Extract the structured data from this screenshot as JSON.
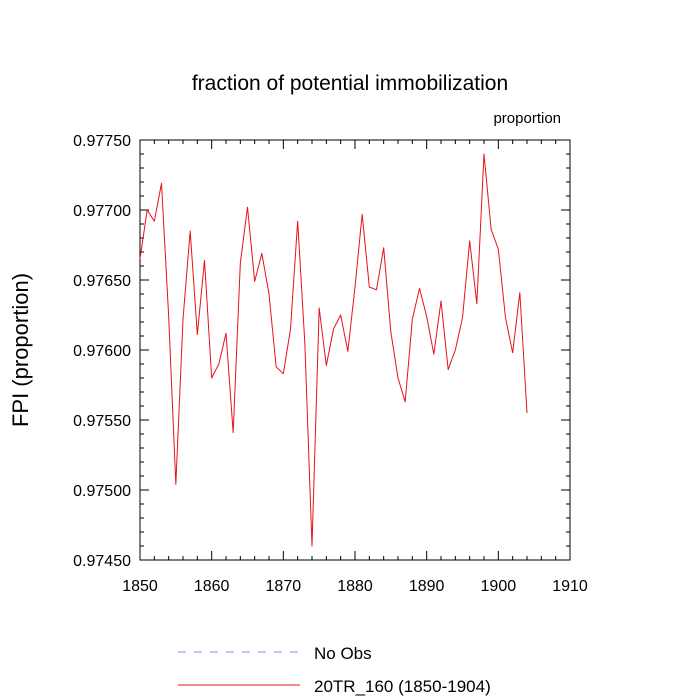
{
  "chart_data": {
    "type": "line",
    "title": "fraction of potential immobilization",
    "units_label": "proportion",
    "xlabel": "",
    "ylabel": "FPI  (proportion)",
    "xlim": [
      1850,
      1910
    ],
    "ylim": [
      0.9745,
      0.9775
    ],
    "x_ticks": [
      "1850",
      "1860",
      "1870",
      "1880",
      "1890",
      "1900",
      "1910"
    ],
    "y_ticks": [
      "0.97450",
      "0.97500",
      "0.97550",
      "0.97600",
      "0.97650",
      "0.97700",
      "0.97750"
    ],
    "grid": false,
    "legend_position": "bottom",
    "series": [
      {
        "name": "No Obs",
        "legend_label": "No Obs",
        "color": "#8080ff",
        "dash": "dashed",
        "x": [],
        "values": []
      },
      {
        "name": "20TR_160",
        "legend_label": "20TR_160 (1850-1904)",
        "color": "#e8101a",
        "dash": "solid",
        "x": [
          1850,
          1851,
          1852,
          1853,
          1854,
          1855,
          1856,
          1857,
          1858,
          1859,
          1860,
          1861,
          1862,
          1863,
          1864,
          1865,
          1866,
          1867,
          1868,
          1869,
          1870,
          1871,
          1872,
          1873,
          1874,
          1875,
          1876,
          1877,
          1878,
          1879,
          1880,
          1881,
          1882,
          1883,
          1884,
          1885,
          1886,
          1887,
          1888,
          1889,
          1890,
          1891,
          1892,
          1893,
          1894,
          1895,
          1896,
          1897,
          1898,
          1899,
          1900,
          1901,
          1902,
          1903,
          1904
        ],
        "values": [
          0.97665,
          0.977,
          0.97692,
          0.97719,
          0.97624,
          0.97504,
          0.97622,
          0.97685,
          0.97611,
          0.97664,
          0.9758,
          0.9759,
          0.97612,
          0.97541,
          0.97662,
          0.97702,
          0.97649,
          0.97669,
          0.9764,
          0.97588,
          0.97583,
          0.97615,
          0.97692,
          0.97605,
          0.9746,
          0.9763,
          0.97589,
          0.97615,
          0.97625,
          0.97599,
          0.97645,
          0.97697,
          0.97645,
          0.97643,
          0.97673,
          0.97613,
          0.9758,
          0.97563,
          0.97622,
          0.97644,
          0.97624,
          0.97597,
          0.97635,
          0.97586,
          0.976,
          0.97623,
          0.97678,
          0.97633,
          0.9774,
          0.97686,
          0.97672,
          0.97623,
          0.97598,
          0.97641,
          0.97555
        ]
      }
    ]
  }
}
